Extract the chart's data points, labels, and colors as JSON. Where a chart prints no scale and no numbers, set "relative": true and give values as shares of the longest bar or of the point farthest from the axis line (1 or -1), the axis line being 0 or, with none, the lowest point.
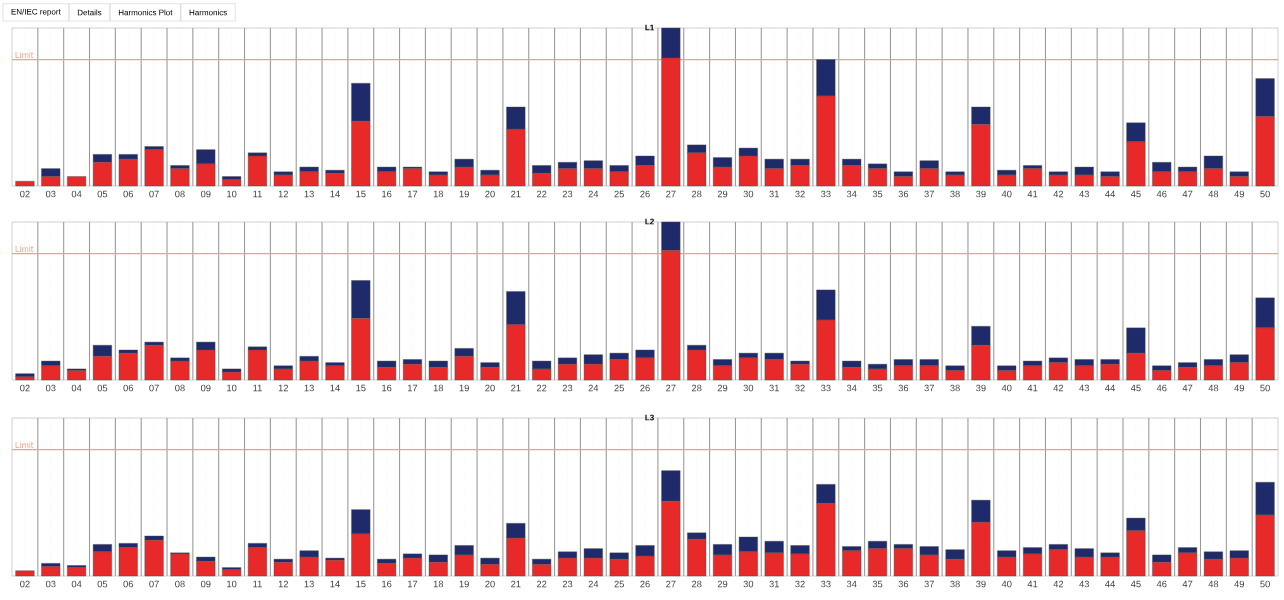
{
  "chart_data": [
    {
      "type": "bar",
      "stacked": true,
      "relative": true,
      "grid": "x",
      "title": "L1",
      "annotations": [
        "EN/IEC report",
        "Details",
        "Harmonics Plot",
        "Harmonics"
      ],
      "categories": [
        "02",
        "03",
        "04",
        "05",
        "06",
        "07",
        "08",
        "09",
        "10",
        "11",
        "12",
        "13",
        "14",
        "15",
        "16",
        "17",
        "18",
        "19",
        "20",
        "21",
        "22",
        "23",
        "24",
        "25",
        "26",
        "27",
        "28",
        "29",
        "30",
        "31",
        "32",
        "33",
        "34",
        "35",
        "36",
        "37",
        "38",
        "39",
        "40",
        "41",
        "42",
        "43",
        "44",
        "45",
        "46",
        "47",
        "48",
        "49",
        "50"
      ],
      "series": [
        {
          "color": "#e8292a",
          "values": [
            0.03,
            0.06,
            0.06,
            0.15,
            0.17,
            0.23,
            0.11,
            0.14,
            0.04,
            0.19,
            0.07,
            0.09,
            0.08,
            0.41,
            0.09,
            0.11,
            0.07,
            0.12,
            0.07,
            0.36,
            0.08,
            0.11,
            0.11,
            0.09,
            0.13,
            0.81,
            0.21,
            0.12,
            0.19,
            0.11,
            0.13,
            0.57,
            0.13,
            0.11,
            0.06,
            0.11,
            0.07,
            0.39,
            0.07,
            0.11,
            0.07,
            0.07,
            0.06,
            0.28,
            0.09,
            0.09,
            0.11,
            0.06,
            0.44
          ]
        },
        {
          "color": "#1f2a6b",
          "values": [
            0,
            0.05,
            0,
            0.05,
            0.03,
            0.02,
            0.02,
            0.09,
            0.02,
            0.02,
            0.02,
            0.03,
            0.02,
            0.24,
            0.03,
            0.01,
            0.02,
            0.05,
            0.03,
            0.14,
            0.05,
            0.04,
            0.05,
            0.04,
            0.06,
            0.19,
            0.05,
            0.06,
            0.05,
            0.06,
            0.04,
            0.23,
            0.04,
            0.03,
            0.03,
            0.05,
            0.02,
            0.11,
            0.03,
            0.02,
            0.02,
            0.05,
            0.03,
            0.12,
            0.06,
            0.03,
            0.08,
            0.03,
            0.24
          ]
        }
      ],
      "ref_lines": [
        {
          "axis": "y",
          "value": 0.8,
          "label": "Limit",
          "color": "#f4a080"
        }
      ]
    },
    {
      "type": "bar",
      "stacked": true,
      "relative": true,
      "grid": "x",
      "title": "L2",
      "categories": [
        "02",
        "03",
        "04",
        "05",
        "06",
        "07",
        "08",
        "09",
        "10",
        "11",
        "12",
        "13",
        "14",
        "15",
        "16",
        "17",
        "18",
        "19",
        "20",
        "21",
        "22",
        "23",
        "24",
        "25",
        "26",
        "27",
        "28",
        "29",
        "30",
        "31",
        "32",
        "33",
        "34",
        "35",
        "36",
        "37",
        "38",
        "39",
        "40",
        "41",
        "42",
        "43",
        "44",
        "45",
        "46",
        "47",
        "48",
        "49",
        "50"
      ],
      "series": [
        {
          "color": "#e8292a",
          "values": [
            0.02,
            0.09,
            0.06,
            0.15,
            0.17,
            0.22,
            0.12,
            0.19,
            0.05,
            0.19,
            0.07,
            0.12,
            0.09,
            0.39,
            0.08,
            0.1,
            0.08,
            0.15,
            0.08,
            0.35,
            0.07,
            0.1,
            0.1,
            0.13,
            0.14,
            0.82,
            0.19,
            0.09,
            0.14,
            0.13,
            0.1,
            0.38,
            0.08,
            0.07,
            0.09,
            0.09,
            0.06,
            0.22,
            0.06,
            0.09,
            0.11,
            0.09,
            0.1,
            0.17,
            0.06,
            0.08,
            0.09,
            0.11,
            0.33
          ]
        },
        {
          "color": "#1f2a6b",
          "values": [
            0.02,
            0.03,
            0.01,
            0.07,
            0.02,
            0.02,
            0.02,
            0.05,
            0.02,
            0.02,
            0.02,
            0.03,
            0.02,
            0.24,
            0.04,
            0.03,
            0.04,
            0.05,
            0.03,
            0.21,
            0.05,
            0.04,
            0.06,
            0.04,
            0.05,
            0.18,
            0.03,
            0.04,
            0.03,
            0.04,
            0.02,
            0.19,
            0.04,
            0.03,
            0.04,
            0.04,
            0.03,
            0.12,
            0.03,
            0.03,
            0.03,
            0.04,
            0.03,
            0.16,
            0.03,
            0.03,
            0.04,
            0.05,
            0.19
          ]
        }
      ],
      "ref_lines": [
        {
          "axis": "y",
          "value": 0.8,
          "label": "Limit",
          "color": "#f4a080"
        }
      ]
    },
    {
      "type": "bar",
      "stacked": true,
      "relative": true,
      "grid": "x",
      "title": "L3",
      "categories": [
        "02",
        "03",
        "04",
        "05",
        "06",
        "07",
        "08",
        "09",
        "10",
        "11",
        "12",
        "13",
        "14",
        "15",
        "16",
        "17",
        "18",
        "19",
        "20",
        "21",
        "22",
        "23",
        "24",
        "25",
        "26",
        "27",
        "28",
        "29",
        "30",
        "31",
        "32",
        "33",
        "34",
        "35",
        "36",
        "37",
        "38",
        "39",
        "40",
        "41",
        "42",
        "43",
        "44",
        "45",
        "46",
        "47",
        "48",
        "49",
        "50"
      ],
      "series": [
        {
          "color": "#e8292a",
          "values": [
            0.05,
            0.09,
            0.08,
            0.23,
            0.27,
            0.34,
            0.21,
            0.14,
            0.06,
            0.27,
            0.13,
            0.18,
            0.15,
            0.4,
            0.12,
            0.17,
            0.13,
            0.2,
            0.11,
            0.36,
            0.11,
            0.17,
            0.17,
            0.16,
            0.19,
            0.71,
            0.35,
            0.2,
            0.23,
            0.22,
            0.21,
            0.69,
            0.24,
            0.26,
            0.26,
            0.2,
            0.16,
            0.51,
            0.18,
            0.21,
            0.25,
            0.18,
            0.18,
            0.43,
            0.13,
            0.22,
            0.16,
            0.17,
            0.58
          ]
        },
        {
          "color": "#1f2a6b",
          "values": [
            0,
            0.03,
            0.02,
            0.07,
            0.04,
            0.04,
            0.01,
            0.04,
            0.02,
            0.04,
            0.03,
            0.06,
            0.02,
            0.23,
            0.04,
            0.04,
            0.07,
            0.09,
            0.06,
            0.14,
            0.05,
            0.06,
            0.09,
            0.06,
            0.1,
            0.29,
            0.06,
            0.1,
            0.14,
            0.11,
            0.08,
            0.18,
            0.04,
            0.07,
            0.04,
            0.08,
            0.09,
            0.21,
            0.06,
            0.06,
            0.05,
            0.08,
            0.04,
            0.12,
            0.07,
            0.05,
            0.07,
            0.07,
            0.31
          ]
        }
      ],
      "ref_lines": [
        {
          "axis": "y",
          "value": 1.2,
          "label": "Limit",
          "color": "#f4a080"
        }
      ]
    }
  ]
}
